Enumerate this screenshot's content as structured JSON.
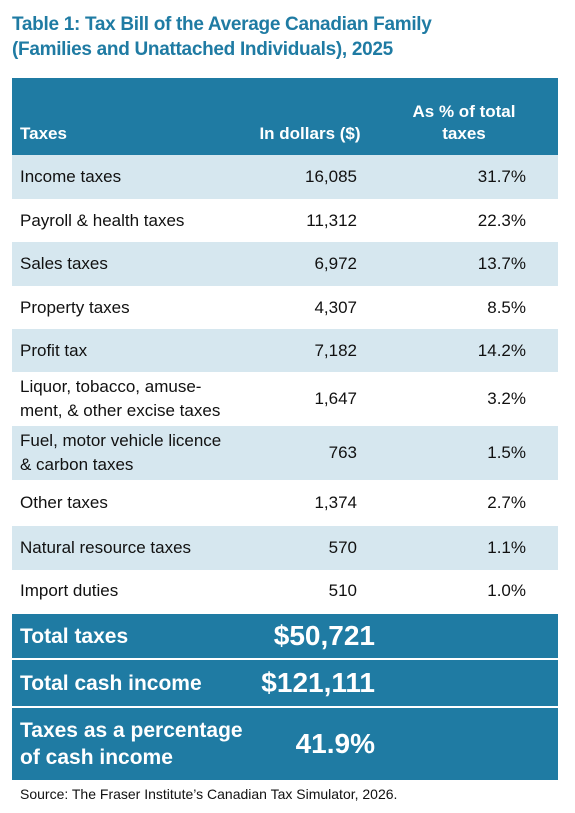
{
  "title": "Table 1: Tax Bill of the Average Canadian Family\n(Families and Unattached Individuals), 2025",
  "table": {
    "header": [
      "Taxes",
      "In dollars ($)",
      "As % of total\ntaxes"
    ],
    "rows": [
      [
        "Income taxes",
        "16,085",
        "31.7%"
      ],
      [
        "Payroll & health taxes",
        "11,312",
        "22.3%"
      ],
      [
        "Sales taxes",
        "6,972",
        "13.7%"
      ],
      [
        "Property taxes",
        "4,307",
        "8.5%"
      ],
      [
        "Profit tax",
        "7,182",
        "14.2%"
      ],
      [
        "Liquor, tobacco, amuse-\nment, & other excise taxes",
        "1,647",
        "3.2%"
      ],
      [
        "Fuel, motor vehicle licence\n& carbon taxes",
        "763",
        "1.5%"
      ],
      [
        "Other taxes",
        "1,374",
        "2.7%"
      ],
      [
        "Natural resource taxes",
        "570",
        "1.1%"
      ],
      [
        "Import duties",
        "510",
        "1.0%"
      ]
    ],
    "totals": [
      [
        "Total taxes",
        "$50,721"
      ],
      [
        "Total cash income",
        "$121,111"
      ],
      [
        "Taxes as a percentage\nof cash income",
        "41.9%"
      ]
    ]
  },
  "source": "Source: The Fraser Institute’s Canadian Tax Simulator, 2026."
}
